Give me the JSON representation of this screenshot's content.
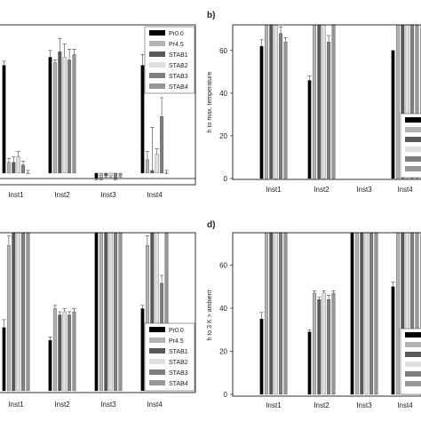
{
  "chart_data": [
    {
      "panel": "a",
      "letter": "",
      "type": "bar",
      "categories": [
        "Inst1",
        "Inst2",
        "Inst3",
        "Inst4"
      ],
      "ylabel": "",
      "ylim": [
        -2,
        55
      ],
      "yticks": [],
      "legend": true,
      "legend_placement": "top-right",
      "series": [
        {
          "name": "Pr0.0",
          "color": "#000000",
          "values": [
            40,
            43,
            -2,
            40
          ],
          "errors": [
            1.5,
            2.5,
            0.5,
            4
          ]
        },
        {
          "name": "Pr4.5",
          "color": "#b3b3b3",
          "values": [
            4,
            41,
            -2,
            5
          ],
          "errors": [
            1.5,
            1,
            0.5,
            3
          ]
        },
        {
          "name": "STAB1",
          "color": "#595959",
          "values": [
            4,
            45,
            -1,
            1
          ],
          "errors": [
            2,
            5,
            0.5,
            16
          ]
        },
        {
          "name": "STAB2",
          "color": "#e0e0e0",
          "values": [
            6,
            43,
            -1,
            7
          ],
          "errors": [
            2,
            5,
            0.5,
            2
          ]
        },
        {
          "name": "STAB3",
          "color": "#7f7f7f",
          "values": [
            3,
            42,
            -2,
            21
          ],
          "errors": [
            1.5,
            4,
            0.5,
            7
          ]
        },
        {
          "name": "STAB4",
          "color": "#969696",
          "values": [
            0,
            44,
            -1,
            0
          ],
          "errors": [
            1,
            2,
            0.5,
            1
          ]
        }
      ]
    },
    {
      "panel": "b",
      "letter": "b)",
      "type": "bar",
      "categories": [
        "Inst1",
        "Inst2",
        "Inst3",
        "Inst4"
      ],
      "ylabel": "h to max. temperature",
      "ylim": [
        0,
        72
      ],
      "yticks": [
        0,
        20,
        40,
        60
      ],
      "legend": true,
      "legend_placement": "bottom-right",
      "series": [
        {
          "name": "",
          "color": "#000000",
          "values": [
            62,
            46,
            0,
            60
          ],
          "errors": [
            3,
            2,
            0,
            0
          ]
        },
        {
          "name": "",
          "color": "#b3b3b3",
          "values": [
            72,
            72,
            0,
            72
          ],
          "errors": [
            0,
            0,
            0,
            0
          ]
        },
        {
          "name": "",
          "color": "#595959",
          "values": [
            72,
            72,
            0,
            72
          ],
          "errors": [
            0,
            0,
            0,
            0
          ]
        },
        {
          "name": "",
          "color": "#e0e0e0",
          "values": [
            72,
            72,
            0,
            72
          ],
          "errors": [
            0,
            0,
            0,
            0
          ]
        },
        {
          "name": "",
          "color": "#7f7f7f",
          "values": [
            68,
            64,
            0,
            72
          ],
          "errors": [
            3,
            3,
            0,
            0
          ]
        },
        {
          "name": "",
          "color": "#969696",
          "values": [
            64,
            72,
            0,
            72
          ],
          "errors": [
            2,
            0,
            0,
            0
          ]
        }
      ]
    },
    {
      "panel": "c",
      "letter": "",
      "type": "bar",
      "categories": [
        "Inst1",
        "Inst2",
        "Inst3",
        "Inst4"
      ],
      "ylabel": "",
      "ylim": [
        0,
        100
      ],
      "yticks": [],
      "legend": true,
      "legend_placement": "bottom-right",
      "series": [
        {
          "name": "Pr0.0",
          "color": "#000000",
          "values": [
            40,
            32,
            100,
            52
          ],
          "errors": [
            5,
            2,
            0,
            2
          ]
        },
        {
          "name": "Pr4.5",
          "color": "#b3b3b3",
          "values": [
            92,
            52,
            100,
            92
          ],
          "errors": [
            6,
            2,
            0,
            6
          ]
        },
        {
          "name": "STAB1",
          "color": "#595959",
          "values": [
            100,
            48,
            100,
            100
          ],
          "errors": [
            0,
            2,
            0,
            0
          ]
        },
        {
          "name": "STAB2",
          "color": "#e0e0e0",
          "values": [
            100,
            50,
            100,
            100
          ],
          "errors": [
            0,
            2,
            0,
            0
          ]
        },
        {
          "name": "STAB3",
          "color": "#7f7f7f",
          "values": [
            100,
            48,
            100,
            68
          ],
          "errors": [
            0,
            2,
            0,
            5
          ]
        },
        {
          "name": "STAB4",
          "color": "#969696",
          "values": [
            100,
            50,
            100,
            100
          ],
          "errors": [
            0,
            2,
            0,
            0
          ]
        }
      ]
    },
    {
      "panel": "d",
      "letter": "d)",
      "type": "bar",
      "categories": [
        "Inst1",
        "Inst2",
        "Inst3",
        "Inst4"
      ],
      "ylabel": "h to 3 K > ambient",
      "ylim": [
        0,
        75
      ],
      "yticks": [
        0,
        20,
        40,
        60
      ],
      "legend": true,
      "legend_placement": "bottom-right",
      "series": [
        {
          "name": "",
          "color": "#000000",
          "values": [
            35,
            29,
            75,
            50
          ],
          "errors": [
            3,
            1,
            0,
            2
          ]
        },
        {
          "name": "",
          "color": "#b3b3b3",
          "values": [
            75,
            47,
            75,
            75
          ],
          "errors": [
            0,
            1,
            0,
            0
          ]
        },
        {
          "name": "",
          "color": "#595959",
          "values": [
            75,
            44,
            75,
            75
          ],
          "errors": [
            0,
            1,
            0,
            0
          ]
        },
        {
          "name": "",
          "color": "#e0e0e0",
          "values": [
            75,
            47,
            75,
            75
          ],
          "errors": [
            0,
            1,
            0,
            0
          ]
        },
        {
          "name": "",
          "color": "#7f7f7f",
          "values": [
            75,
            44,
            75,
            75
          ],
          "errors": [
            0,
            2,
            0,
            0
          ]
        },
        {
          "name": "",
          "color": "#969696",
          "values": [
            75,
            47,
            75,
            75
          ],
          "errors": [
            0,
            1,
            0,
            0
          ]
        }
      ]
    }
  ]
}
